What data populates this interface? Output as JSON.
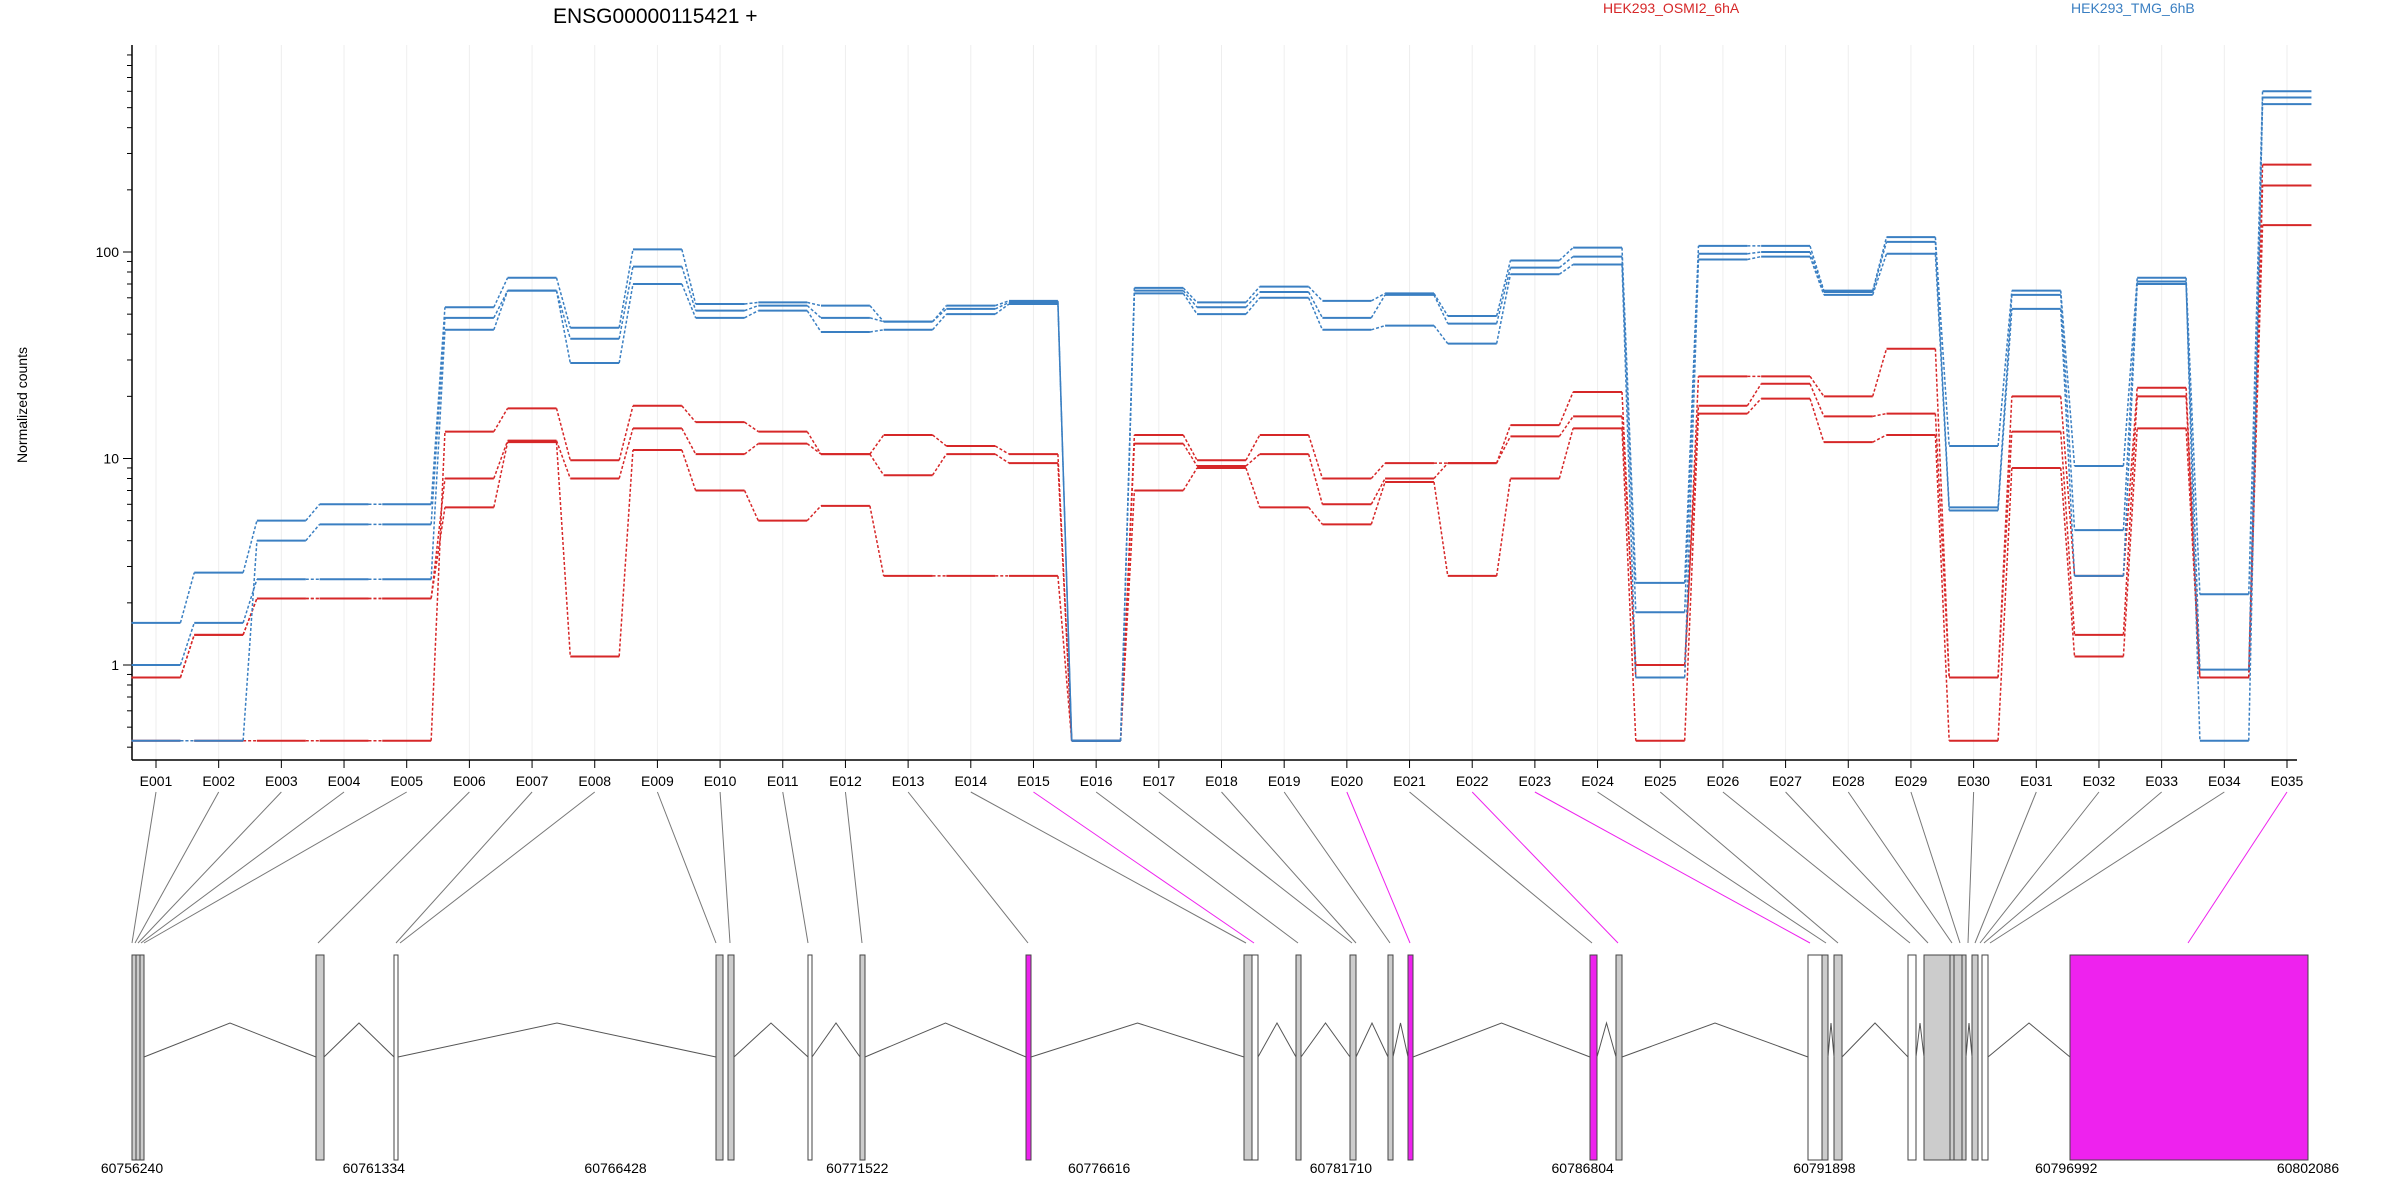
{
  "chart_data": {
    "type": "line",
    "title": "ENSG00000115421 +",
    "ylabel": "Normalized counts",
    "xlabel": "",
    "y_scale": "log",
    "y_ticks": [
      1,
      10,
      100
    ],
    "grid": "vertical lines at exon bins",
    "legend_placement": "top",
    "legend": [
      {
        "label": "HEK293_OSMI2_6hA",
        "color": "#d62728"
      },
      {
        "label": "HEK293_TMG_6hB",
        "color": "#3a7fc2"
      }
    ],
    "categories": [
      "E001",
      "E002",
      "E003",
      "E004",
      "E005",
      "E006",
      "E007",
      "E008",
      "E009",
      "E010",
      "E011",
      "E012",
      "E013",
      "E014",
      "E015",
      "E016",
      "E017",
      "E018",
      "E019",
      "E020",
      "E021",
      "E022",
      "E023",
      "E024",
      "E025",
      "E026",
      "E027",
      "E028",
      "E029",
      "E030",
      "E031",
      "E032",
      "E033",
      "E034",
      "E035"
    ],
    "series": [
      {
        "group": "HEK293_OSMI2_6hA",
        "color": "#d62728",
        "values": [
          0.87,
          1.4,
          2.1,
          2.1,
          2.1,
          5.8,
          12.0,
          1.1,
          11.0,
          7.0,
          5.0,
          5.9,
          2.7,
          2.7,
          2.7,
          0.43,
          7.0,
          9.0,
          5.8,
          4.8,
          7.7,
          2.7,
          8.0,
          14.0,
          0.43,
          16.5,
          19.5,
          12.0,
          13.0,
          0.43,
          9.0,
          1.1,
          14.0,
          0.87,
          135
        ]
      },
      {
        "group": "HEK293_OSMI2_6hA",
        "color": "#d62728",
        "values": [
          0.87,
          1.4,
          2.1,
          2.1,
          2.1,
          8.0,
          12.2,
          8.0,
          14.0,
          10.5,
          11.8,
          10.5,
          8.3,
          10.5,
          9.5,
          0.43,
          11.8,
          9.2,
          10.5,
          6.0,
          8.0,
          9.5,
          12.8,
          16.0,
          1.0,
          18.0,
          23.0,
          16.0,
          16.5,
          0.87,
          13.5,
          1.4,
          20.0,
          0.87,
          210
        ]
      },
      {
        "group": "HEK293_OSMI2_6hA",
        "color": "#d62728",
        "values": [
          0.43,
          0.43,
          0.43,
          0.43,
          0.43,
          13.5,
          17.5,
          9.8,
          18.0,
          15.0,
          13.5,
          10.5,
          13.0,
          11.5,
          10.5,
          0.43,
          13.0,
          9.8,
          13.0,
          8.0,
          9.5,
          9.5,
          14.5,
          21.0,
          0.87,
          25.0,
          25.0,
          20.0,
          34.0,
          0.87,
          20.0,
          2.7,
          22.0,
          0.87,
          265
        ]
      },
      {
        "group": "HEK293_TMG_6hB",
        "color": "#3a7fc2",
        "values": [
          1.0,
          1.6,
          2.6,
          2.6,
          2.6,
          42.0,
          65.0,
          29.0,
          70.0,
          48.0,
          52.0,
          41.0,
          42.0,
          50.0,
          56.0,
          0.43,
          63.0,
          50.0,
          60.0,
          42.0,
          44.0,
          36.0,
          78.0,
          87.0,
          0.87,
          92.0,
          95.0,
          62.0,
          98.0,
          5.6,
          53.0,
          2.7,
          70.0,
          0.95,
          520
        ]
      },
      {
        "group": "HEK293_TMG_6hB",
        "color": "#3a7fc2",
        "values": [
          0.43,
          0.43,
          4.0,
          4.8,
          4.8,
          48.0,
          65.0,
          38.0,
          85.0,
          52.0,
          55.0,
          48.0,
          46.0,
          53.0,
          57.0,
          0.43,
          65.0,
          54.0,
          64.0,
          48.0,
          62.0,
          45.0,
          84.0,
          95.0,
          1.8,
          98.0,
          100.0,
          64.0,
          112.0,
          5.8,
          62.0,
          4.5,
          72.0,
          0.43,
          560
        ]
      },
      {
        "group": "HEK293_TMG_6hB",
        "color": "#3a7fc2",
        "values": [
          1.6,
          2.8,
          5.0,
          6.0,
          6.0,
          54.0,
          75.0,
          43.0,
          103.0,
          56.0,
          57.0,
          55.0,
          46.0,
          55.0,
          58.0,
          0.43,
          67.0,
          57.0,
          68.0,
          58.0,
          63.0,
          49.0,
          91.0,
          105.0,
          2.5,
          107.0,
          107.0,
          65.0,
          118.0,
          11.5,
          65.0,
          9.2,
          75.0,
          2.2,
          600
        ]
      }
    ],
    "genomic_axis": {
      "tick_labels": [
        "60756240",
        "60761334",
        "60766428",
        "60771522",
        "60776616",
        "60781710",
        "60786804",
        "60791898",
        "60796992",
        "60802086"
      ]
    },
    "gene_model": {
      "exons_tested_significant": [
        "E015",
        "E020",
        "E022",
        "E023",
        "E035"
      ],
      "highlight_color": "#ee22ee",
      "exon_fill": "#cccccc"
    }
  }
}
